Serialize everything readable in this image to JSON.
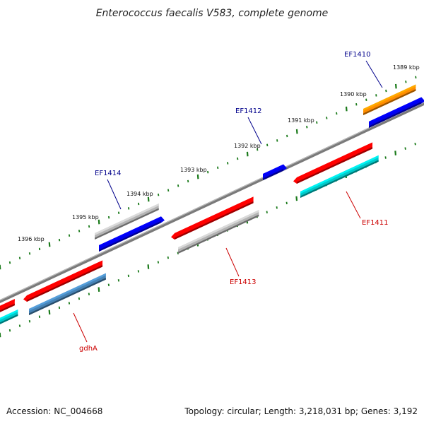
{
  "title": "Enterococcus faecalis V583, complete genome",
  "footer": {
    "accession": "Accession: NC_004668",
    "summary": "Topology: circular; Length: 3,218,031 bp; Genes: 3,192"
  },
  "scale_labels": [
    "1389 kbp",
    "1390 kbp",
    "1391 kbp",
    "1392 kbp",
    "1393 kbp",
    "1394 kbp",
    "1395 kbp",
    "1396 kbp"
  ],
  "gene_labels": [
    {
      "name": "EF1410",
      "color": "#00008b"
    },
    {
      "name": "EF1412",
      "color": "#00008b"
    },
    {
      "name": "EF1414",
      "color": "#00008b"
    },
    {
      "name": "EF1411",
      "color": "#cc0000"
    },
    {
      "name": "EF1413",
      "color": "#cc0000"
    },
    {
      "name": "gdhA",
      "color": "#cc0000"
    }
  ],
  "colors": {
    "backbone": "#808080",
    "tick": "#1a7a1a",
    "red_feature": "#ff0000",
    "blue_feature": "#0000ee",
    "gray_feature": "#b4b4b4",
    "cyan_feature": "#00c8c8",
    "steel_feature": "#4682b4",
    "orange_feature": "#ff8c00"
  }
}
